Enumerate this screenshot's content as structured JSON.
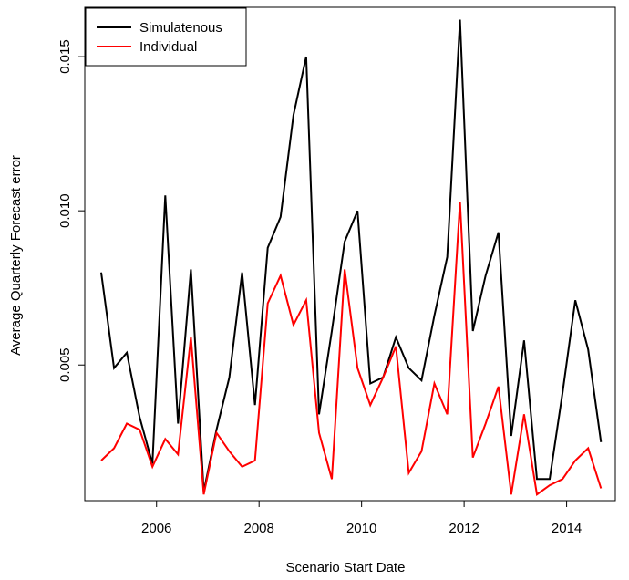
{
  "chart_data": {
    "type": "line",
    "xlabel": "Scenario Start Date",
    "ylabel": "Average Quarterly Forecast error",
    "xlim": [
      2004.6,
      2014.95
    ],
    "ylim": [
      0.0006,
      0.0166
    ],
    "x_ticks": [
      2006,
      2008,
      2010,
      2012,
      2014
    ],
    "x_tick_labels": [
      "2006",
      "2008",
      "2010",
      "2012",
      "2014"
    ],
    "y_ticks": [
      0.005,
      0.01,
      0.015
    ],
    "y_tick_labels": [
      "0.005",
      "0.010",
      "0.015"
    ],
    "x": [
      2004.92,
      2005.17,
      2005.42,
      2005.67,
      2005.92,
      2006.17,
      2006.42,
      2006.67,
      2006.92,
      2007.17,
      2007.42,
      2007.67,
      2007.92,
      2008.17,
      2008.42,
      2008.67,
      2008.92,
      2009.17,
      2009.42,
      2009.67,
      2009.92,
      2010.17,
      2010.42,
      2010.67,
      2010.92,
      2011.17,
      2011.42,
      2011.67,
      2011.92,
      2012.17,
      2012.42,
      2012.67,
      2012.92,
      2013.17,
      2013.42,
      2013.67,
      2013.92,
      2014.17,
      2014.42,
      2014.67
    ],
    "series": [
      {
        "name": "Simulatenous",
        "color": "#000000",
        "values": [
          0.008,
          0.0049,
          0.0054,
          0.0033,
          0.0018,
          0.0105,
          0.0031,
          0.0081,
          0.0009,
          0.0029,
          0.0046,
          0.008,
          0.0037,
          0.0088,
          0.0098,
          0.0131,
          0.015,
          0.0034,
          0.0061,
          0.009,
          0.01,
          0.0044,
          0.0046,
          0.0059,
          0.0049,
          0.0045,
          0.0066,
          0.0085,
          0.0162,
          0.0061,
          0.0079,
          0.0093,
          0.0027,
          0.0058,
          0.0013,
          0.0013,
          0.0041,
          0.0071,
          0.0055,
          0.0025
        ]
      },
      {
        "name": "Individual",
        "color": "#ff0000",
        "values": [
          0.0019,
          0.0023,
          0.0031,
          0.0029,
          0.0017,
          0.0026,
          0.0021,
          0.0059,
          0.0008,
          0.0028,
          0.0022,
          0.0017,
          0.0019,
          0.007,
          0.0079,
          0.0063,
          0.0071,
          0.0028,
          0.0013,
          0.0081,
          0.0049,
          0.0037,
          0.0046,
          0.0056,
          0.0015,
          0.0022,
          0.0044,
          0.0034,
          0.0103,
          0.002,
          0.0031,
          0.0043,
          0.0008,
          0.0034,
          0.0008,
          0.0011,
          0.0013,
          0.0019,
          0.0023,
          0.001
        ]
      }
    ],
    "legend_position": "top-left",
    "grid": false
  }
}
